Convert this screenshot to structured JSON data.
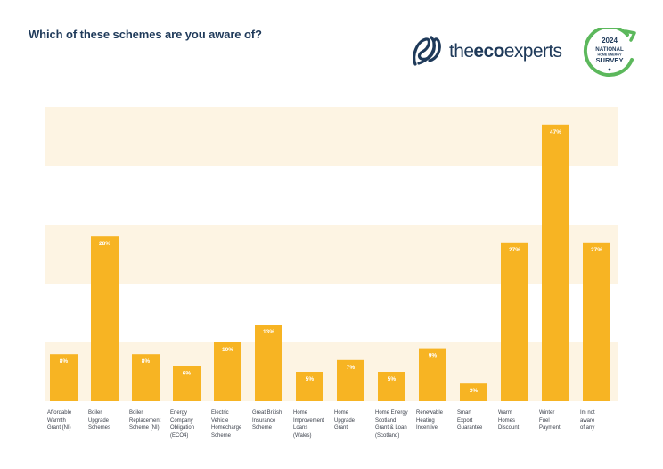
{
  "header": {
    "title": "Which of these schemes are you aware of?"
  },
  "logo": {
    "text_light": "the",
    "text_bold": "eco",
    "text_end": "experts",
    "brand_color": "#1f3a5a"
  },
  "badge": {
    "year": "2024",
    "line1": "NATIONAL",
    "line2": "HOME ENERGY",
    "line3": "SURVEY",
    "ring_color": "#5cb85c"
  },
  "colors": {
    "bar": "#f7b423",
    "band": "#fdf4e3"
  },
  "chart_data": {
    "type": "bar",
    "title": "Which of these schemes are you aware of?",
    "categories": [
      "Affordable Warmth Grant (NI)",
      "Boiler Upgrade Schemes",
      "Boiler Replacement Scheme (NI)",
      "Energy Company Obligation (ECO4)",
      "Electric Vehicle Homecharge Scheme",
      "Great British Insurance Scheme",
      "Home Improvement Loans (Wales)",
      "Home Upgrade Grant",
      "Home Energy Scotland Grant & Loan (Scotland)",
      "Renewable Heating Incentive",
      "Smart Export Guarantee",
      "Warm Homes Discount",
      "Winter Fuel Payment",
      "Im not aware of any"
    ],
    "category_lines": [
      [
        "Affordable",
        "Warmth",
        "Grant (NI)"
      ],
      [
        "Boiler",
        "Upgrade",
        "Schemes"
      ],
      [
        "Boiler",
        "Replacement",
        "Scheme (NI)"
      ],
      [
        "Energy",
        "Company",
        "Obligation",
        "(ECO4)"
      ],
      [
        "Electric",
        "Vehicle",
        "Homecharge",
        "Scheme"
      ],
      [
        "Great British",
        "Insurance",
        "Scheme"
      ],
      [
        "Home",
        "Improvement",
        "Loans",
        "(Wales)"
      ],
      [
        "Home",
        "Upgrade",
        "Grant"
      ],
      [
        "Home Energy",
        "Scotland",
        "Grant & Loan",
        "(Scotland)"
      ],
      [
        "Renewable",
        "Heating",
        "Incentive"
      ],
      [
        "Smart",
        "Export",
        "Guarantee"
      ],
      [
        "Warm",
        "Homes",
        "Discount"
      ],
      [
        "Winter",
        "Fuel",
        "Payment"
      ],
      [
        "Im not",
        "aware",
        "of any"
      ]
    ],
    "values": [
      8,
      28,
      8,
      6,
      10,
      13,
      5,
      7,
      5,
      9,
      3,
      27,
      47,
      27
    ],
    "value_labels": [
      "8%",
      "28%",
      "8%",
      "6%",
      "10%",
      "13%",
      "5%",
      "7%",
      "5%",
      "9%",
      "3%",
      "27%",
      "47%",
      "27%"
    ],
    "ylim": [
      0,
      50
    ],
    "bands": [
      [
        0,
        10
      ],
      [
        20,
        30
      ],
      [
        40,
        50
      ]
    ],
    "grid": false,
    "legend": "none"
  }
}
